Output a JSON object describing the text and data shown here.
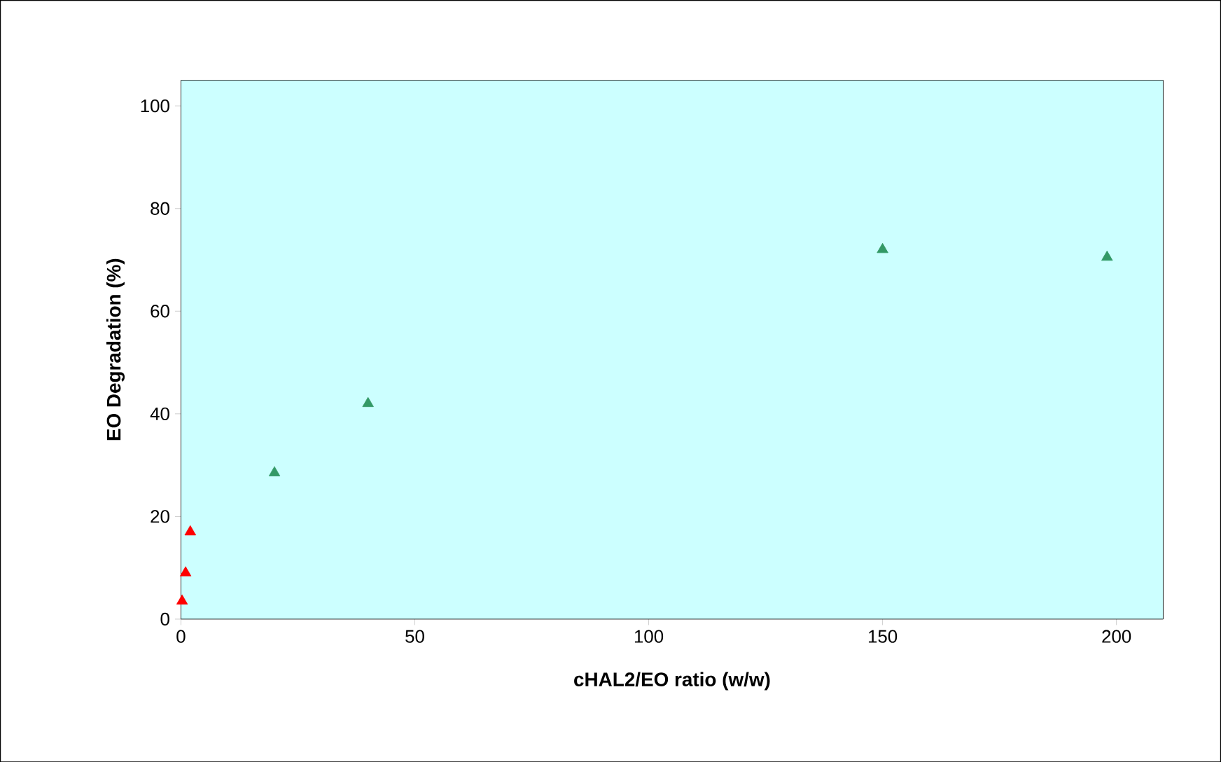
{
  "chart_data": {
    "type": "scatter",
    "xlabel": "cHAL2/EO  ratio (w/w)",
    "ylabel": "EO Degradation (%)",
    "xlim": [
      0,
      210
    ],
    "ylim": [
      0,
      105
    ],
    "xticks": [
      0,
      50,
      100,
      150,
      200
    ],
    "yticks": [
      0,
      20,
      40,
      60,
      80,
      100
    ],
    "marker": "triangle",
    "grid": false,
    "series": [
      {
        "color": "#ff0000",
        "x": [
          0.25,
          1,
          2
        ],
        "values": [
          3.5,
          9,
          17
        ]
      },
      {
        "color": "#339966",
        "x": [
          20,
          40,
          150,
          198
        ],
        "values": [
          28.5,
          42,
          72,
          70.5
        ]
      }
    ]
  }
}
